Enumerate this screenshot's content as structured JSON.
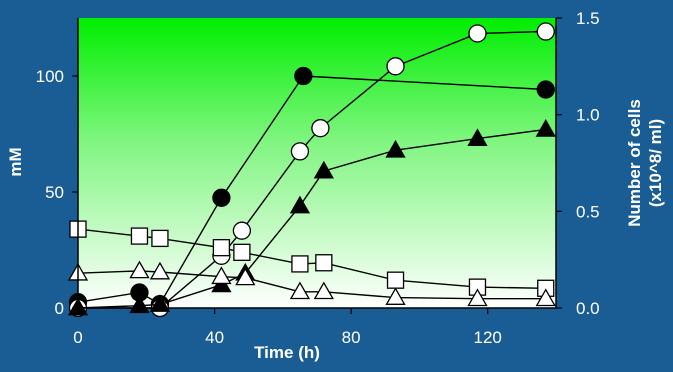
{
  "chart_data": {
    "type": "line",
    "xlabel": "Time (h)",
    "ylabel_left": "mM",
    "ylabel_right_line1": "Number of cells",
    "ylabel_right_line2": "(x10^8/ ml)",
    "xlim": [
      0,
      140
    ],
    "ylim_left": [
      0,
      125
    ],
    "ylim_right": [
      0,
      1.5
    ],
    "x_ticks": [
      0,
      40,
      80,
      120
    ],
    "x_tick_labels": [
      "0",
      "40",
      "80",
      "120"
    ],
    "y_left_ticks": [
      0,
      50,
      100
    ],
    "y_left_tick_labels": [
      "0",
      "50",
      "100"
    ],
    "y_right_ticks": [
      0,
      0.5,
      1.0,
      1.5
    ],
    "y_right_tick_labels": [
      "0.0",
      "0.5",
      "1.0",
      "1.5"
    ],
    "grid": false,
    "legend": "none",
    "series": [
      {
        "marker": "filled-circle",
        "axis": "right",
        "x": [
          0,
          18,
          24,
          42,
          66,
          137
        ],
        "y": [
          0.03,
          0.08,
          0.02,
          0.57,
          1.2,
          1.13
        ]
      },
      {
        "marker": "open-circle",
        "axis": "right",
        "x": [
          0,
          24,
          42,
          48,
          65,
          71,
          93,
          117,
          137
        ],
        "y": [
          0.0,
          0.0,
          0.27,
          0.4,
          0.81,
          0.93,
          1.25,
          1.42,
          1.43
        ]
      },
      {
        "marker": "filled-triangle",
        "axis": "left",
        "x": [
          0,
          18,
          24,
          42,
          49,
          65,
          72,
          93,
          117,
          137
        ],
        "y": [
          0,
          1,
          1.5,
          10,
          15,
          44,
          59,
          68,
          73,
          77
        ]
      },
      {
        "marker": "open-square",
        "axis": "left",
        "x": [
          0,
          18,
          24,
          42,
          48,
          65,
          72,
          93,
          117,
          137
        ],
        "y": [
          34,
          31,
          30,
          26,
          24,
          19,
          19.5,
          12,
          9,
          8.5
        ]
      },
      {
        "marker": "open-triangle",
        "axis": "left",
        "x": [
          0,
          18,
          24,
          42,
          49,
          65,
          72,
          93,
          117,
          137
        ],
        "y": [
          15,
          16,
          15.5,
          13.5,
          13,
          7,
          7,
          4.5,
          4,
          4
        ]
      }
    ]
  },
  "colors": {
    "background": "#1a5d95",
    "plot_top": "#00ee00",
    "plot_bottom": "#ffffff",
    "marker_fill_dark": "#000000",
    "marker_fill_open": "#ffffff",
    "axis_text": "#ffffff"
  }
}
